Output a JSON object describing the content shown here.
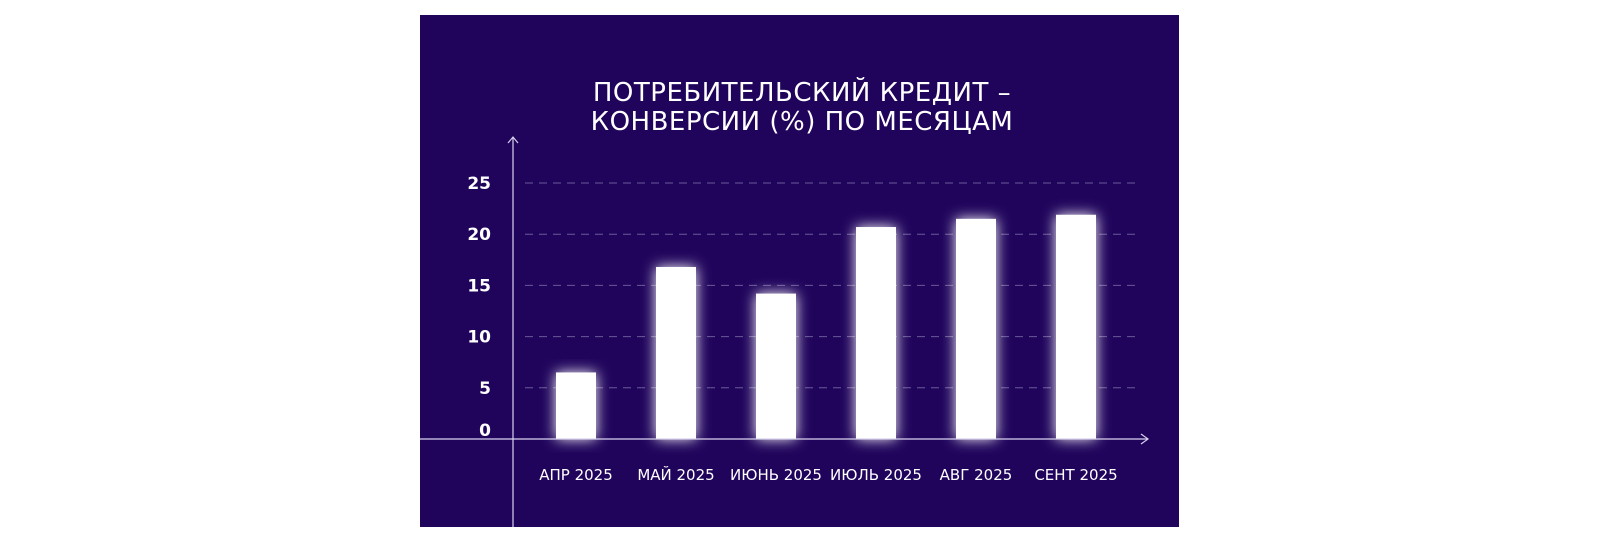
{
  "colors": {
    "background": "#20045c",
    "bar": "#ffffff",
    "text": "#ffffff",
    "grid": "#6a5a98"
  },
  "chart_data": {
    "type": "bar",
    "title_lines": [
      "ПОТРЕБИТЕЛЬСКИЙ КРЕДИТ –",
      "КОНВЕРСИИ (%) ПО МЕСЯЦАМ"
    ],
    "categories": [
      "АПР 2025",
      "МАЙ 2025",
      "ИЮНЬ 2025",
      "ИЮЛЬ 2025",
      "АВГ 2025",
      "СЕНТ 2025"
    ],
    "values": [
      6.5,
      16.8,
      14.2,
      20.7,
      21.5,
      21.9
    ],
    "yticks": [
      "0",
      "5",
      "10",
      "15",
      "20",
      "25"
    ],
    "ytick_values": [
      0,
      5,
      10,
      15,
      20,
      25
    ],
    "ylim": [
      0,
      25
    ],
    "xlabel": "",
    "ylabel": "",
    "grid": true,
    "legend": "none"
  }
}
